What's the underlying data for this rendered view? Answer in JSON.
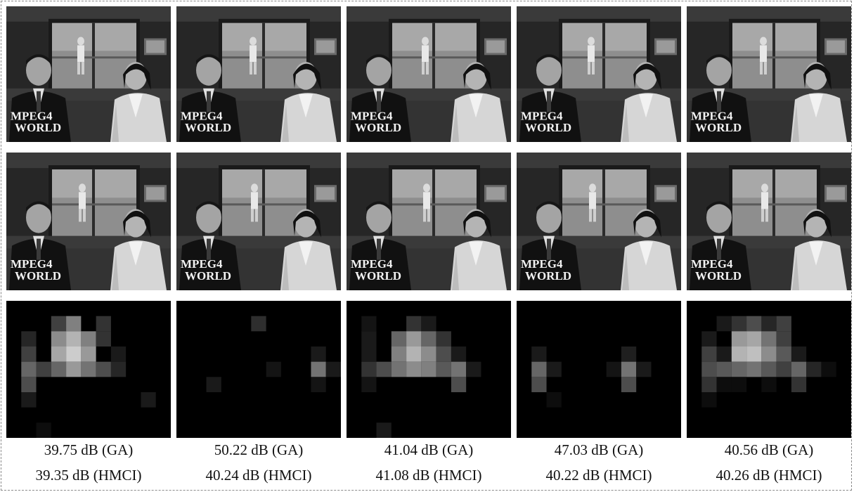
{
  "frame_overlay_text": [
    "MPEG4",
    "WORLD"
  ],
  "columns": [
    {
      "ga": "39.75 dB (GA)",
      "hmci": "39.35 dB (HMCI)",
      "heatmap": [
        [
          0,
          0,
          0,
          0,
          0,
          0,
          0,
          0,
          0,
          0,
          0
        ],
        [
          0,
          0,
          0,
          0.25,
          0.5,
          0,
          0.2,
          0,
          0,
          0,
          0
        ],
        [
          0,
          0.15,
          0,
          0.55,
          0.7,
          0.5,
          0.2,
          0,
          0,
          0,
          0
        ],
        [
          0,
          0.25,
          0,
          0.65,
          0.8,
          0.6,
          0,
          0.1,
          0,
          0,
          0
        ],
        [
          0,
          0.4,
          0.25,
          0.4,
          0.6,
          0.45,
          0.3,
          0.15,
          0,
          0,
          0
        ],
        [
          0,
          0.3,
          0,
          0,
          0,
          0,
          0,
          0,
          0,
          0,
          0
        ],
        [
          0,
          0.1,
          0,
          0,
          0,
          0,
          0,
          0,
          0,
          0.1,
          0
        ],
        [
          0,
          0,
          0,
          0,
          0,
          0,
          0,
          0,
          0,
          0,
          0
        ],
        [
          0,
          0,
          0.05,
          0,
          0,
          0,
          0,
          0,
          0,
          0,
          0
        ]
      ]
    },
    {
      "ga": "50.22 dB (GA)",
      "hmci": "40.24 dB (HMCI)",
      "heatmap": [
        [
          0,
          0,
          0,
          0,
          0,
          0,
          0,
          0,
          0,
          0,
          0
        ],
        [
          0,
          0,
          0,
          0,
          0,
          0.18,
          0,
          0,
          0,
          0,
          0
        ],
        [
          0,
          0,
          0,
          0,
          0,
          0,
          0,
          0,
          0,
          0,
          0
        ],
        [
          0,
          0,
          0,
          0,
          0,
          0,
          0,
          0,
          0,
          0.1,
          0
        ],
        [
          0,
          0,
          0,
          0,
          0,
          0,
          0.08,
          0,
          0,
          0.45,
          0.1
        ],
        [
          0,
          0,
          0.1,
          0,
          0,
          0,
          0,
          0,
          0,
          0.08,
          0
        ],
        [
          0,
          0,
          0,
          0,
          0,
          0,
          0,
          0,
          0,
          0,
          0
        ],
        [
          0,
          0,
          0,
          0,
          0,
          0,
          0,
          0,
          0,
          0,
          0
        ],
        [
          0,
          0,
          0,
          0,
          0,
          0,
          0,
          0,
          0,
          0,
          0
        ]
      ]
    },
    {
      "ga": "41.04 dB (GA)",
      "hmci": "41.08 dB (HMCI)",
      "heatmap": [
        [
          0,
          0,
          0,
          0,
          0,
          0,
          0,
          0,
          0,
          0,
          0
        ],
        [
          0,
          0.08,
          0,
          0,
          0.2,
          0.1,
          0,
          0,
          0,
          0,
          0
        ],
        [
          0,
          0.1,
          0,
          0.4,
          0.6,
          0.4,
          0.2,
          0,
          0,
          0,
          0
        ],
        [
          0,
          0.1,
          0,
          0.5,
          0.7,
          0.55,
          0.3,
          0.1,
          0,
          0,
          0
        ],
        [
          0,
          0.2,
          0.3,
          0.45,
          0.55,
          0.5,
          0.35,
          0.45,
          0.1,
          0,
          0
        ],
        [
          0,
          0.08,
          0,
          0,
          0,
          0,
          0,
          0.3,
          0,
          0,
          0
        ],
        [
          0,
          0,
          0,
          0,
          0,
          0,
          0,
          0,
          0,
          0,
          0
        ],
        [
          0,
          0,
          0,
          0,
          0,
          0,
          0,
          0,
          0,
          0,
          0
        ],
        [
          0,
          0,
          0.1,
          0,
          0,
          0,
          0,
          0,
          0,
          0,
          0
        ]
      ]
    },
    {
      "ga": "47.03 dB (GA)",
      "hmci": "40.22 dB (HMCI)",
      "heatmap": [
        [
          0,
          0,
          0,
          0,
          0,
          0,
          0,
          0,
          0,
          0,
          0
        ],
        [
          0,
          0,
          0,
          0,
          0,
          0,
          0,
          0,
          0,
          0,
          0
        ],
        [
          0,
          0,
          0,
          0,
          0,
          0,
          0,
          0,
          0,
          0,
          0
        ],
        [
          0,
          0.1,
          0,
          0,
          0,
          0,
          0,
          0.12,
          0,
          0,
          0
        ],
        [
          0,
          0.4,
          0.1,
          0,
          0,
          0,
          0.08,
          0.45,
          0.1,
          0,
          0
        ],
        [
          0,
          0.3,
          0,
          0,
          0,
          0,
          0,
          0.3,
          0,
          0,
          0
        ],
        [
          0,
          0,
          0.05,
          0,
          0,
          0,
          0,
          0,
          0,
          0,
          0
        ],
        [
          0,
          0,
          0,
          0,
          0,
          0,
          0,
          0,
          0,
          0,
          0
        ],
        [
          0,
          0,
          0,
          0,
          0,
          0,
          0,
          0,
          0,
          0,
          0
        ]
      ]
    },
    {
      "ga": "40.56 dB (GA)",
      "hmci": "40.26 dB (HMCI)",
      "heatmap": [
        [
          0,
          0,
          0,
          0,
          0,
          0,
          0,
          0,
          0,
          0,
          0
        ],
        [
          0,
          0,
          0.1,
          0.2,
          0.3,
          0.15,
          0.25,
          0,
          0,
          0,
          0
        ],
        [
          0,
          0.1,
          0,
          0.6,
          0.65,
          0.45,
          0.25,
          0,
          0,
          0,
          0
        ],
        [
          0,
          0.25,
          0.1,
          0.7,
          0.75,
          0.55,
          0.35,
          0.1,
          0,
          0,
          0
        ],
        [
          0,
          0.3,
          0.35,
          0.4,
          0.45,
          0.35,
          0.25,
          0.4,
          0.15,
          0.05,
          0
        ],
        [
          0,
          0.2,
          0.05,
          0.05,
          0,
          0.05,
          0,
          0.2,
          0,
          0,
          0
        ],
        [
          0,
          0.05,
          0,
          0,
          0,
          0,
          0,
          0,
          0,
          0,
          0
        ],
        [
          0,
          0,
          0,
          0,
          0,
          0,
          0,
          0,
          0,
          0,
          0
        ],
        [
          0,
          0,
          0,
          0,
          0,
          0,
          0,
          0,
          0,
          0,
          0
        ]
      ]
    }
  ]
}
